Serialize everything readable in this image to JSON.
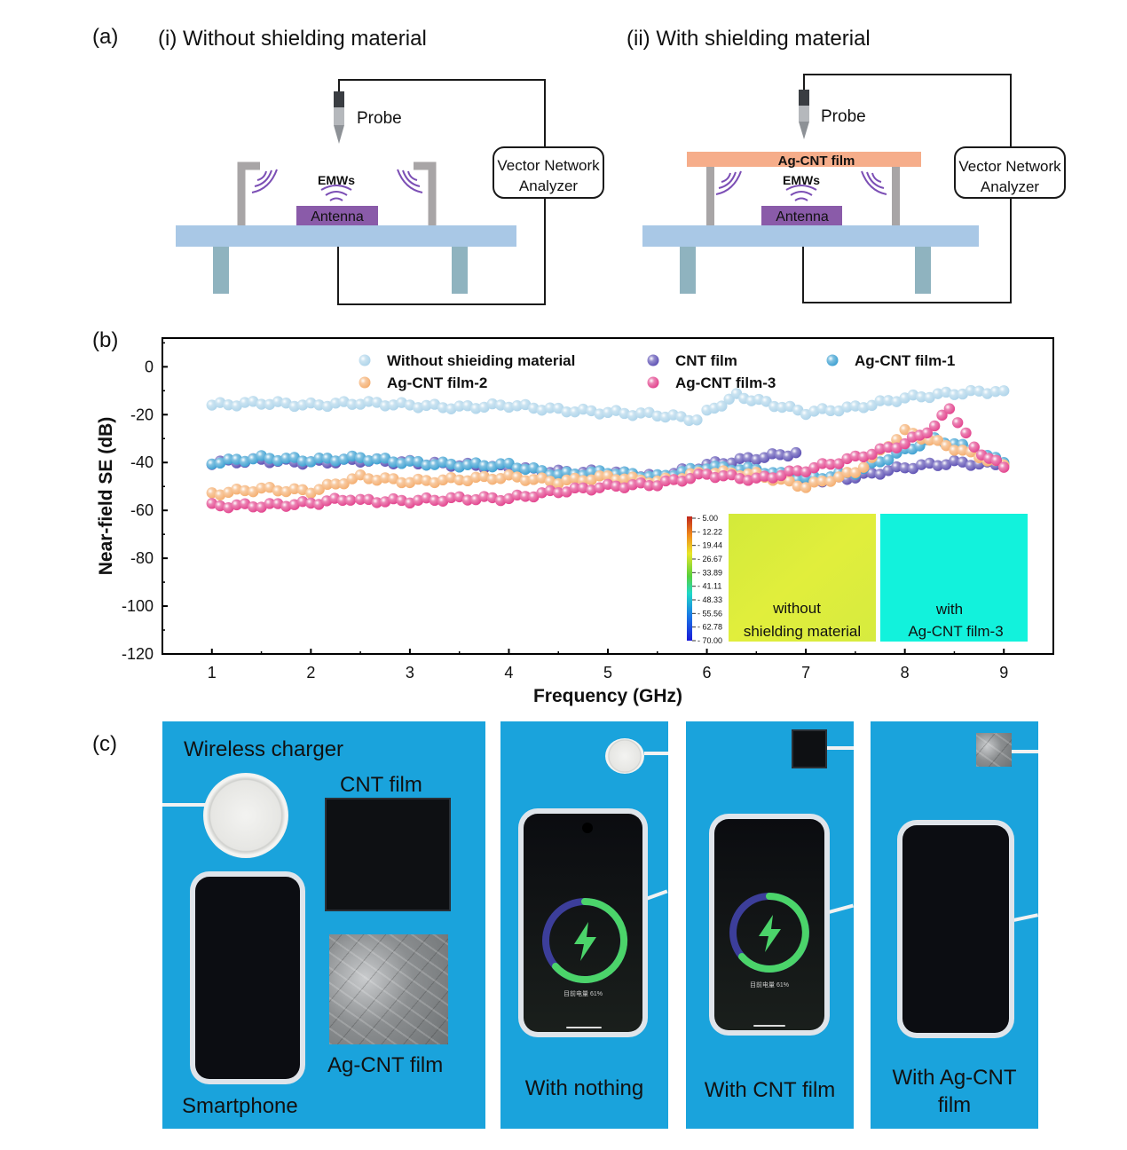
{
  "panel_a": {
    "label": "(a)",
    "left_title": "(i) Without shielding material",
    "right_title": "(ii) With shielding material",
    "probe": "Probe",
    "vna_line1": "Vector Network",
    "vna_line2": "Analyzer",
    "emws": "EMWs",
    "antenna": "Antenna",
    "film": "Ag-CNT film"
  },
  "panel_b": {
    "label": "(b)",
    "inset_scale": [
      "5.00",
      "12.22",
      "19.44",
      "26.67",
      "33.89",
      "41.11",
      "48.33",
      "55.56",
      "62.78",
      "70.00"
    ],
    "inset_left_line1": "without",
    "inset_left_line2": "shielding material",
    "inset_right_line1": "with",
    "inset_right_line2": "Ag-CNT film-3",
    "colors": {
      "without": "#aed4ea",
      "cnt": "#5c4fb3",
      "ag1": "#3b9fd1",
      "ag2": "#f4ad6e",
      "ag3": "#e2418c"
    }
  },
  "chart_data": {
    "type": "scatter",
    "xlabel": "Frequency (GHz)",
    "ylabel": "Near-field SE (dB)",
    "xlim": [
      0.5,
      9.5
    ],
    "ylim": [
      -120,
      12
    ],
    "xticks": [
      1,
      2,
      3,
      4,
      5,
      6,
      7,
      8,
      9
    ],
    "yticks": [
      0,
      -20,
      -40,
      -60,
      -80,
      -100,
      -120
    ],
    "legend_position": "top",
    "series": [
      {
        "name": "Without shieiding material",
        "color_key": "without",
        "x": [
          1.0,
          1.5,
          2.0,
          2.5,
          3.0,
          3.5,
          4.0,
          4.5,
          5.0,
          5.5,
          5.9,
          6.0,
          6.3,
          6.6,
          7.0,
          7.5,
          8.0,
          8.5,
          9.0
        ],
        "y": [
          -16,
          -15,
          -16,
          -15,
          -16,
          -17,
          -16,
          -18,
          -19,
          -20,
          -22,
          -19,
          -12,
          -15,
          -19,
          -17,
          -13,
          -11,
          -10
        ]
      },
      {
        "name": "CNT film",
        "color_key": "cnt",
        "x": [
          1.0,
          1.5,
          2.0,
          2.5,
          3.0,
          3.5,
          4.0,
          4.5,
          5.0,
          5.5,
          6.0,
          6.5,
          6.9,
          7.0,
          7.5,
          8.0,
          8.5,
          9.0
        ],
        "y": [
          -40,
          -39,
          -40,
          -39,
          -40,
          -41,
          -42,
          -44,
          -44,
          -46,
          -41,
          -38,
          -36,
          -48,
          -46,
          -42,
          -40,
          -41
        ]
      },
      {
        "name": "Ag-CNT film-1",
        "color_key": "ag1",
        "x": [
          1.0,
          1.5,
          2.0,
          2.5,
          3.0,
          3.5,
          4.0,
          4.5,
          5.0,
          5.5,
          6.0,
          6.5,
          7.0,
          7.5,
          8.0,
          8.3,
          8.5,
          9.0
        ],
        "y": [
          -40,
          -38,
          -39,
          -38,
          -40,
          -41,
          -41,
          -45,
          -44,
          -46,
          -42,
          -43,
          -47,
          -44,
          -35,
          -30,
          -32,
          -40
        ]
      },
      {
        "name": "Ag-CNT film-2",
        "color_key": "ag2",
        "x": [
          1.0,
          1.5,
          2.0,
          2.5,
          3.0,
          3.5,
          4.0,
          4.5,
          5.0,
          5.5,
          6.0,
          6.5,
          7.0,
          7.5,
          8.0,
          8.5,
          9.0
        ],
        "y": [
          -53,
          -51,
          -52,
          -46,
          -48,
          -47,
          -46,
          -48,
          -46,
          -48,
          -44,
          -45,
          -50,
          -44,
          -27,
          -34,
          -41
        ]
      },
      {
        "name": "Ag-CNT film-3",
        "color_key": "ag3",
        "x": [
          1.0,
          1.5,
          2.0,
          2.4,
          2.5,
          3.0,
          3.5,
          4.0,
          4.5,
          5.0,
          5.5,
          6.0,
          6.5,
          7.0,
          7.5,
          8.0,
          8.3,
          8.45,
          8.7,
          9.0
        ],
        "y": [
          -58,
          -58,
          -57,
          -55,
          -56,
          -56,
          -55,
          -55,
          -52,
          -50,
          -49,
          -45,
          -47,
          -43,
          -38,
          -32,
          -25,
          -17,
          -34,
          -42
        ]
      }
    ]
  },
  "panel_c": {
    "label": "(c)",
    "charger_label": "Wireless charger",
    "cnt_label": "CNT film",
    "ag_label": "Ag-CNT film",
    "phone_label": "Smartphone",
    "p2_label": "With nothing",
    "p3_label": "With CNT film",
    "p4_label_line1": "With Ag-CNT",
    "p4_label_line2": "film",
    "battery_text": "目前电量 61%"
  }
}
